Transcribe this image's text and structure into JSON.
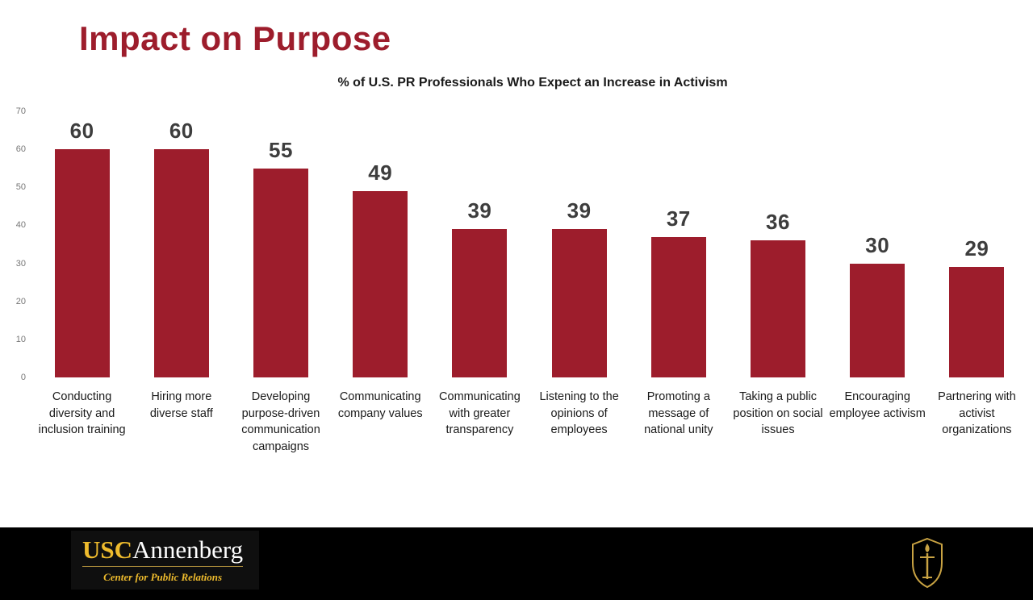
{
  "page": {
    "title": "Impact on Purpose"
  },
  "colors": {
    "cardinal": "#9d1d2c",
    "gold": "#eebb2d",
    "bar": "#9d1d2c",
    "footer_background": "#000000"
  },
  "chart_data": {
    "type": "bar",
    "title": "% of U.S. PR Professionals Who Expect an Increase in Activism",
    "categories": [
      "Conducting diversity and inclusion training",
      "Hiring more diverse staff",
      "Developing purpose-driven communication campaigns",
      "Communicating company values",
      "Communicating with greater transparency",
      "Listening to the opinions of employees",
      "Promoting a message of national unity",
      "Taking a public position on social issues",
      "Encouraging employee activism",
      "Partnering with activist organizations"
    ],
    "values": [
      60,
      60,
      55,
      49,
      39,
      39,
      37,
      36,
      30,
      29
    ],
    "xlabel": "",
    "ylabel": "",
    "ylim": [
      0,
      70
    ],
    "yticks": [
      0,
      10,
      20,
      30,
      40,
      50,
      60,
      70
    ],
    "grid": false,
    "legend": false,
    "bar_color": "#9d1d2c",
    "value_labels_shown": true
  },
  "footer": {
    "brand_usc": "USC",
    "brand_annenberg": "Annenberg",
    "brand_sub": "Center for Public Relations",
    "shield_icon": "usc-shield-icon"
  }
}
